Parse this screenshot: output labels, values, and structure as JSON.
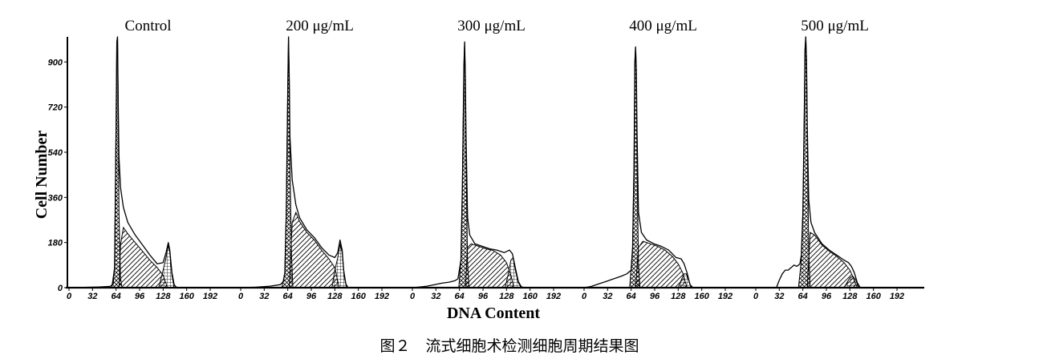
{
  "figure": {
    "caption": "图２　流式细胞术检测细胞周期结果图",
    "xlabel": "DNA Content",
    "ylabel": "Cell Number"
  },
  "colors": {
    "ink": "#000000",
    "background": "#ffffff"
  },
  "chart_data": [
    {
      "type": "area",
      "title": "Control",
      "xlim": [
        0,
        192
      ],
      "ylim": [
        0,
        1000
      ],
      "xticks": [
        0,
        32,
        64,
        96,
        128,
        160,
        192
      ],
      "yticks": [
        0,
        180,
        360,
        540,
        720,
        900
      ],
      "histogram": [
        [
          0,
          0
        ],
        [
          20,
          1
        ],
        [
          40,
          3
        ],
        [
          56,
          5
        ],
        [
          60,
          14
        ],
        [
          62,
          80
        ],
        [
          64,
          650
        ],
        [
          65,
          980
        ],
        [
          66,
          1000
        ],
        [
          67,
          720
        ],
        [
          68,
          520
        ],
        [
          70,
          400
        ],
        [
          74,
          320
        ],
        [
          80,
          260
        ],
        [
          90,
          210
        ],
        [
          100,
          170
        ],
        [
          110,
          130
        ],
        [
          120,
          95
        ],
        [
          128,
          100
        ],
        [
          132,
          140
        ],
        [
          135,
          180
        ],
        [
          137,
          150
        ],
        [
          140,
          60
        ],
        [
          143,
          12
        ],
        [
          146,
          2
        ],
        [
          150,
          0
        ]
      ],
      "components": {
        "G1": [
          [
            58,
            0
          ],
          [
            62,
            80
          ],
          [
            64,
            650
          ],
          [
            65,
            980
          ],
          [
            66,
            1000
          ],
          [
            67,
            720
          ],
          [
            68,
            300
          ],
          [
            70,
            40
          ],
          [
            72,
            0
          ]
        ],
        "S": [
          [
            68,
            0
          ],
          [
            70,
            170
          ],
          [
            74,
            240
          ],
          [
            80,
            215
          ],
          [
            90,
            180
          ],
          [
            100,
            145
          ],
          [
            110,
            110
          ],
          [
            120,
            80
          ],
          [
            128,
            50
          ],
          [
            134,
            0
          ]
        ],
        "G2": [
          [
            122,
            0
          ],
          [
            128,
            70
          ],
          [
            132,
            120
          ],
          [
            135,
            170
          ],
          [
            137,
            140
          ],
          [
            140,
            50
          ],
          [
            143,
            0
          ]
        ]
      }
    },
    {
      "type": "area",
      "title": "200 μg/mL",
      "xlim": [
        0,
        192
      ],
      "ylim": [
        0,
        1000
      ],
      "xticks": [
        0,
        32,
        64,
        96,
        128,
        160,
        192
      ],
      "yticks": [
        0,
        180,
        360,
        540,
        720,
        900
      ],
      "histogram": [
        [
          0,
          0
        ],
        [
          20,
          2
        ],
        [
          40,
          6
        ],
        [
          54,
          12
        ],
        [
          58,
          25
        ],
        [
          60,
          60
        ],
        [
          62,
          300
        ],
        [
          64,
          800
        ],
        [
          65,
          1000
        ],
        [
          66,
          840
        ],
        [
          67,
          600
        ],
        [
          70,
          430
        ],
        [
          75,
          330
        ],
        [
          80,
          280
        ],
        [
          90,
          230
        ],
        [
          100,
          200
        ],
        [
          110,
          160
        ],
        [
          120,
          130
        ],
        [
          128,
          120
        ],
        [
          132,
          140
        ],
        [
          135,
          190
        ],
        [
          138,
          150
        ],
        [
          140,
          70
        ],
        [
          143,
          15
        ],
        [
          146,
          0
        ]
      ],
      "components": {
        "G1": [
          [
            56,
            0
          ],
          [
            60,
            60
          ],
          [
            62,
            300
          ],
          [
            64,
            800
          ],
          [
            65,
            1000
          ],
          [
            66,
            840
          ],
          [
            67,
            500
          ],
          [
            69,
            130
          ],
          [
            71,
            0
          ]
        ],
        "S": [
          [
            66,
            0
          ],
          [
            70,
            260
          ],
          [
            75,
            300
          ],
          [
            80,
            265
          ],
          [
            90,
            220
          ],
          [
            100,
            190
          ],
          [
            110,
            150
          ],
          [
            120,
            115
          ],
          [
            128,
            80
          ],
          [
            134,
            0
          ]
        ],
        "G2": [
          [
            124,
            0
          ],
          [
            128,
            70
          ],
          [
            132,
            120
          ],
          [
            135,
            175
          ],
          [
            138,
            140
          ],
          [
            141,
            40
          ],
          [
            144,
            0
          ]
        ]
      }
    },
    {
      "type": "area",
      "title": "300 μg/mL",
      "xlim": [
        0,
        192
      ],
      "ylim": [
        0,
        1000
      ],
      "xticks": [
        0,
        32,
        64,
        96,
        128,
        160,
        192
      ],
      "yticks": [
        0,
        180,
        360,
        540,
        720,
        900
      ],
      "histogram": [
        [
          0,
          0
        ],
        [
          10,
          3
        ],
        [
          20,
          6
        ],
        [
          30,
          12
        ],
        [
          40,
          18
        ],
        [
          50,
          22
        ],
        [
          58,
          28
        ],
        [
          62,
          35
        ],
        [
          66,
          110
        ],
        [
          68,
          400
        ],
        [
          70,
          880
        ],
        [
          71,
          980
        ],
        [
          72,
          840
        ],
        [
          73,
          600
        ],
        [
          75,
          280
        ],
        [
          78,
          210
        ],
        [
          85,
          175
        ],
        [
          95,
          165
        ],
        [
          105,
          155
        ],
        [
          115,
          150
        ],
        [
          125,
          140
        ],
        [
          132,
          150
        ],
        [
          136,
          135
        ],
        [
          140,
          80
        ],
        [
          144,
          25
        ],
        [
          148,
          4
        ],
        [
          152,
          0
        ]
      ],
      "components": {
        "G1": [
          [
            63,
            0
          ],
          [
            66,
            110
          ],
          [
            68,
            400
          ],
          [
            70,
            880
          ],
          [
            71,
            980
          ],
          [
            72,
            840
          ],
          [
            73,
            500
          ],
          [
            75,
            100
          ],
          [
            77,
            0
          ]
        ],
        "S": [
          [
            72,
            0
          ],
          [
            75,
            160
          ],
          [
            80,
            175
          ],
          [
            90,
            165
          ],
          [
            100,
            155
          ],
          [
            110,
            148
          ],
          [
            120,
            130
          ],
          [
            128,
            100
          ],
          [
            134,
            50
          ],
          [
            138,
            0
          ]
        ],
        "G2": [
          [
            126,
            0
          ],
          [
            130,
            50
          ],
          [
            134,
            110
          ],
          [
            137,
            120
          ],
          [
            140,
            70
          ],
          [
            144,
            20
          ],
          [
            148,
            0
          ]
        ]
      }
    },
    {
      "type": "area",
      "title": "400 μg/mL",
      "xlim": [
        0,
        192
      ],
      "ylim": [
        0,
        1000
      ],
      "xticks": [
        0,
        32,
        64,
        96,
        128,
        160,
        192
      ],
      "yticks": [
        0,
        180,
        360,
        540,
        720,
        900
      ],
      "histogram": [
        [
          0,
          0
        ],
        [
          10,
          5
        ],
        [
          20,
          15
        ],
        [
          30,
          25
        ],
        [
          40,
          35
        ],
        [
          50,
          45
        ],
        [
          58,
          55
        ],
        [
          64,
          70
        ],
        [
          66,
          160
        ],
        [
          68,
          500
        ],
        [
          69,
          900
        ],
        [
          70,
          960
        ],
        [
          71,
          870
        ],
        [
          72,
          620
        ],
        [
          74,
          300
        ],
        [
          78,
          220
        ],
        [
          85,
          190
        ],
        [
          95,
          175
        ],
        [
          105,
          165
        ],
        [
          115,
          150
        ],
        [
          125,
          120
        ],
        [
          132,
          115
        ],
        [
          136,
          95
        ],
        [
          140,
          60
        ],
        [
          144,
          12
        ],
        [
          148,
          0
        ]
      ],
      "components": {
        "G1": [
          [
            62,
            0
          ],
          [
            66,
            160
          ],
          [
            68,
            500
          ],
          [
            69,
            900
          ],
          [
            70,
            960
          ],
          [
            71,
            870
          ],
          [
            72,
            500
          ],
          [
            74,
            100
          ],
          [
            76,
            0
          ]
        ],
        "S": [
          [
            70,
            0
          ],
          [
            74,
            160
          ],
          [
            80,
            185
          ],
          [
            90,
            175
          ],
          [
            100,
            165
          ],
          [
            110,
            150
          ],
          [
            120,
            125
          ],
          [
            128,
            95
          ],
          [
            134,
            60
          ],
          [
            140,
            0
          ]
        ],
        "G2": [
          [
            128,
            0
          ],
          [
            132,
            30
          ],
          [
            136,
            55
          ],
          [
            139,
            55
          ],
          [
            142,
            30
          ],
          [
            146,
            0
          ]
        ]
      }
    },
    {
      "type": "area",
      "title": "500 μg/mL",
      "xlim": [
        0,
        192
      ],
      "ylim": [
        0,
        1000
      ],
      "xticks": [
        0,
        32,
        64,
        96,
        128,
        160,
        192
      ],
      "yticks": [
        0,
        180,
        360,
        540,
        720,
        900
      ],
      "histogram": [
        [
          28,
          0
        ],
        [
          32,
          30
        ],
        [
          36,
          55
        ],
        [
          40,
          70
        ],
        [
          44,
          70
        ],
        [
          48,
          80
        ],
        [
          52,
          90
        ],
        [
          56,
          85
        ],
        [
          60,
          95
        ],
        [
          62,
          130
        ],
        [
          64,
          300
        ],
        [
          66,
          700
        ],
        [
          67,
          950
        ],
        [
          68,
          1000
        ],
        [
          69,
          900
        ],
        [
          70,
          640
        ],
        [
          72,
          350
        ],
        [
          75,
          260
        ],
        [
          80,
          220
        ],
        [
          90,
          175
        ],
        [
          100,
          150
        ],
        [
          110,
          130
        ],
        [
          120,
          110
        ],
        [
          126,
          100
        ],
        [
          130,
          85
        ],
        [
          134,
          60
        ],
        [
          138,
          20
        ],
        [
          142,
          0
        ]
      ],
      "components": {
        "G1": [
          [
            58,
            0
          ],
          [
            62,
            110
          ],
          [
            64,
            300
          ],
          [
            66,
            700
          ],
          [
            67,
            950
          ],
          [
            68,
            1000
          ],
          [
            69,
            900
          ],
          [
            70,
            600
          ],
          [
            72,
            150
          ],
          [
            74,
            0
          ]
        ],
        "S": [
          [
            70,
            0
          ],
          [
            74,
            220
          ],
          [
            80,
            210
          ],
          [
            90,
            170
          ],
          [
            100,
            145
          ],
          [
            110,
            125
          ],
          [
            120,
            100
          ],
          [
            128,
            70
          ],
          [
            134,
            30
          ],
          [
            138,
            0
          ]
        ],
        "G2": [
          [
            120,
            0
          ],
          [
            124,
            20
          ],
          [
            128,
            40
          ],
          [
            132,
            45
          ],
          [
            136,
            30
          ],
          [
            140,
            0
          ]
        ]
      }
    }
  ]
}
